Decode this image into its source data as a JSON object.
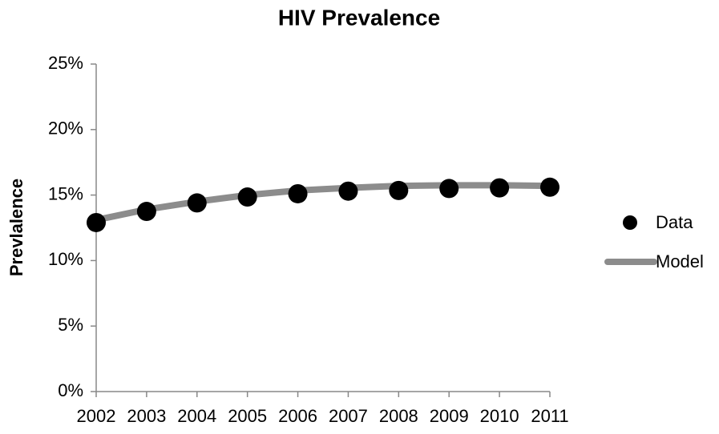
{
  "chart_data": {
    "type": "line",
    "title": "HIV Prevalence",
    "y_label": "Prevlalence",
    "categories": [
      "2002",
      "2003",
      "2004",
      "2005",
      "2006",
      "2007",
      "2008",
      "2009",
      "2010",
      "2011"
    ],
    "series": [
      {
        "name": "Data",
        "color": "#000000",
        "style": "markers",
        "values": [
          12.9,
          13.75,
          14.4,
          14.85,
          15.1,
          15.3,
          15.35,
          15.5,
          15.55,
          15.6
        ]
      },
      {
        "name": "Model",
        "color": "#8c8c8c",
        "style": "line",
        "values": [
          13.1,
          13.9,
          14.5,
          15.0,
          15.35,
          15.55,
          15.7,
          15.75,
          15.75,
          15.7
        ]
      }
    ],
    "ylim": [
      0,
      25
    ],
    "yticks": [
      {
        "value": 0,
        "label": "0%"
      },
      {
        "value": 5,
        "label": "5%"
      },
      {
        "value": 10,
        "label": "10%"
      },
      {
        "value": 15,
        "label": "15%"
      },
      {
        "value": 20,
        "label": "20%"
      },
      {
        "value": 25,
        "label": "25%"
      }
    ],
    "legend": "right",
    "grid": false
  }
}
